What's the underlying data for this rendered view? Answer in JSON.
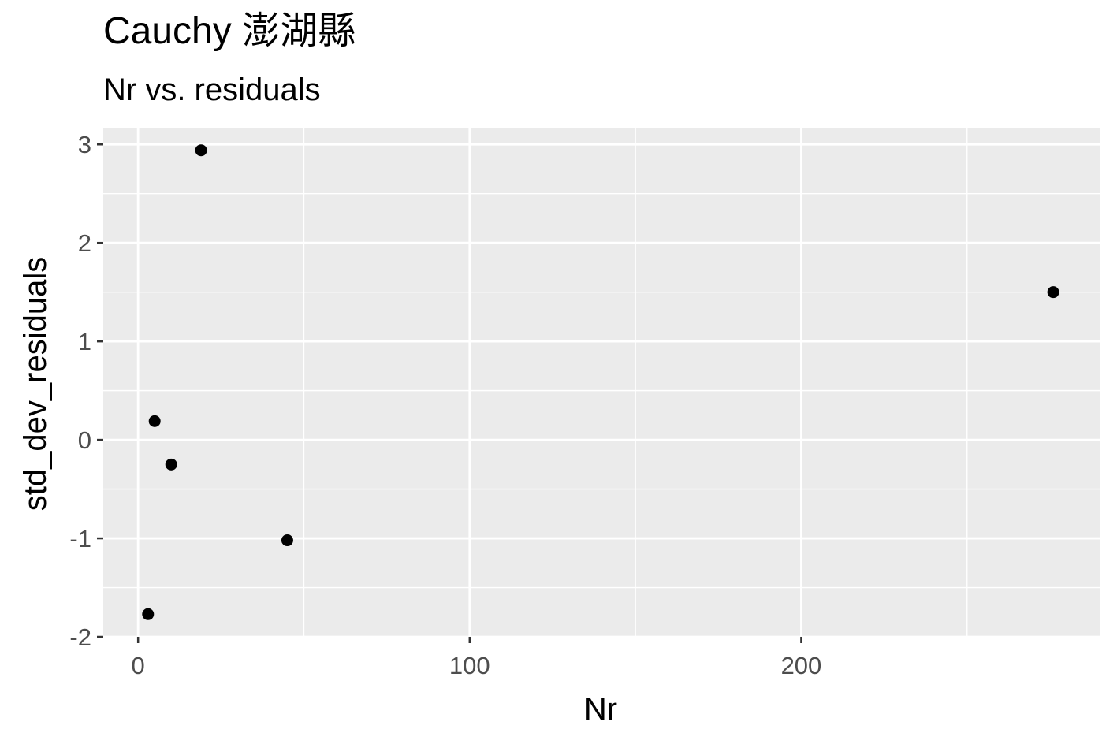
{
  "chart_data": {
    "type": "scatter",
    "title": "Cauchy 澎湖縣",
    "subtitle": "Nr vs. residuals",
    "xlabel": "Nr",
    "ylabel": "std_dev_residuals",
    "xlim": [
      -10.5,
      290
    ],
    "ylim": [
      -2.0,
      3.17
    ],
    "x_ticks": [
      0,
      100,
      200
    ],
    "x_minor_ticks": [
      50,
      150,
      250
    ],
    "y_ticks": [
      -2,
      -1,
      0,
      1,
      2,
      3
    ],
    "y_minor_ticks": [
      -1.5,
      -0.5,
      0.5,
      1.5,
      2.5
    ],
    "x_tick_labels": [
      "0",
      "100",
      "200"
    ],
    "y_tick_labels": [
      "-2",
      "-1",
      "0",
      "1",
      "2",
      "3"
    ],
    "grid": true,
    "point_color": "#000000",
    "panel_background": "#ebebeb",
    "grid_color": "#ffffff",
    "points": [
      {
        "x": 3,
        "y": -1.77
      },
      {
        "x": 5,
        "y": 0.19
      },
      {
        "x": 10,
        "y": -0.25
      },
      {
        "x": 19,
        "y": 2.94
      },
      {
        "x": 45,
        "y": -1.02
      },
      {
        "x": 276,
        "y": 1.5
      }
    ]
  }
}
